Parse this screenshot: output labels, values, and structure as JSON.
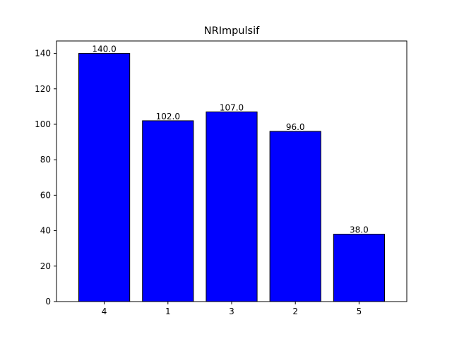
{
  "chart_data": {
    "type": "bar",
    "title": "NRImpulsif",
    "xlabel": "",
    "ylabel": "",
    "categories": [
      "4",
      "1",
      "3",
      "2",
      "5"
    ],
    "values": [
      140.0,
      102.0,
      107.0,
      96.0,
      38.0
    ],
    "value_labels": [
      "140.0",
      "102.0",
      "107.0",
      "96.0",
      "38.0"
    ],
    "ylim": [
      0,
      147
    ],
    "yticks": [
      0,
      20,
      40,
      60,
      80,
      100,
      120,
      140
    ],
    "grid": false,
    "legend": "none",
    "colors": {
      "bar_fill": "#0000ff",
      "bar_edge": "#000000",
      "axis": "#000000"
    }
  }
}
